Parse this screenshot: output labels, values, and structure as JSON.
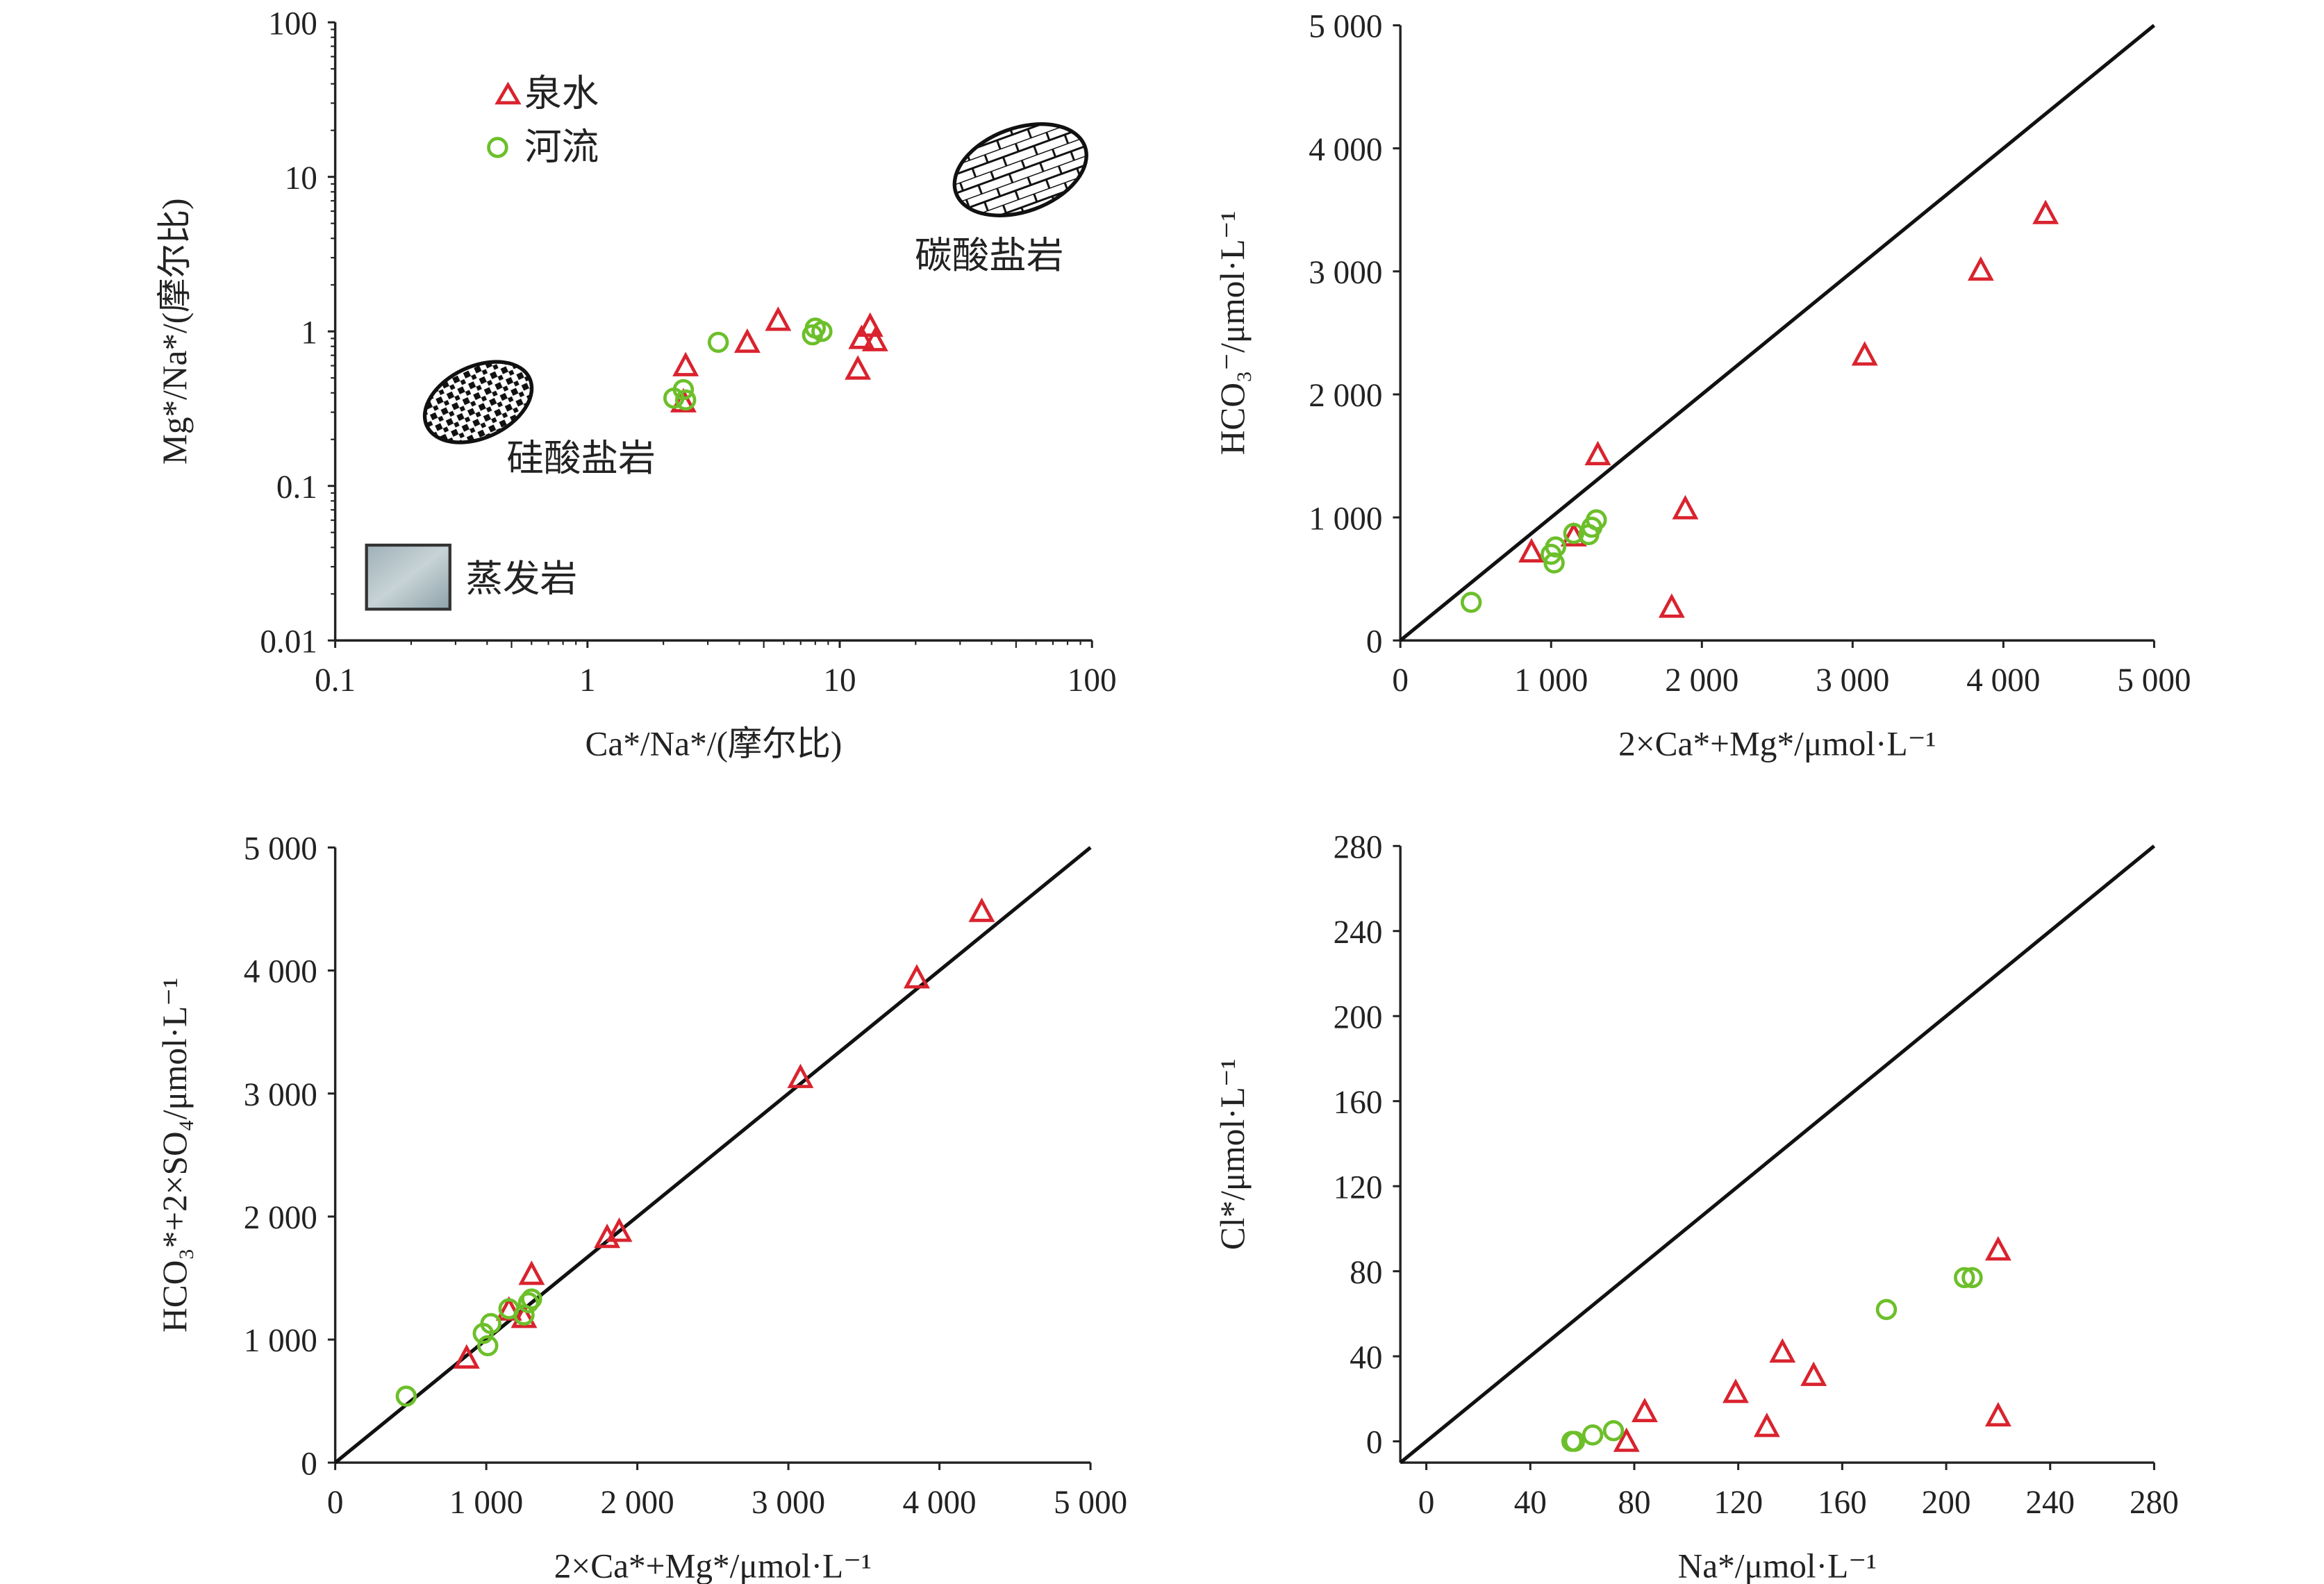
{
  "colors": {
    "spring": "#d9232e",
    "river": "#6cbf2a",
    "axis": "#222222",
    "line": "#111111"
  },
  "legend": {
    "items": [
      {
        "label": "泉水",
        "marker": "triangle"
      },
      {
        "label": "河流",
        "marker": "circle"
      }
    ],
    "placement": "top-left"
  },
  "chart_data": [
    {
      "type": "scatter",
      "xlabel": "Ca*/Na*/(摩尔比)",
      "ylabel": "Mg*/Na*/(摩尔比)",
      "xscale": "log",
      "yscale": "log",
      "xlim": [
        0.1,
        100
      ],
      "ylim": [
        0.01,
        100
      ],
      "xticks": [
        "0.1",
        "1",
        "10",
        "100"
      ],
      "yticks": [
        "0.01",
        "0.1",
        "1",
        "10",
        "100"
      ],
      "annotations": [
        {
          "text": "碳酸盐岩",
          "icon": "carbonate-rock-icon"
        },
        {
          "text": "硅酸盐岩",
          "icon": "silicate-rock-icon"
        },
        {
          "text": "蒸发岩",
          "icon": "evaporite-icon"
        }
      ],
      "series": [
        {
          "name": "泉水",
          "marker": "triangle",
          "points": [
            [
              2.4,
              0.35
            ],
            [
              2.45,
              0.6
            ],
            [
              4.3,
              0.85
            ],
            [
              5.7,
              1.18
            ],
            [
              11.8,
              0.57
            ],
            [
              12.2,
              0.9
            ],
            [
              13.2,
              1.08
            ],
            [
              13.8,
              0.87
            ]
          ]
        },
        {
          "name": "河流",
          "marker": "circle",
          "points": [
            [
              2.2,
              0.37
            ],
            [
              2.4,
              0.42
            ],
            [
              2.45,
              0.36
            ],
            [
              3.3,
              0.85
            ],
            [
              7.8,
              0.95
            ],
            [
              8.0,
              1.05
            ],
            [
              8.5,
              1.0
            ]
          ]
        }
      ]
    },
    {
      "type": "scatter",
      "xlabel": "2×Ca*+Mg*/μmol·L⁻¹",
      "ylabel": "HCO₃⁻/μmol·L⁻¹",
      "xlim": [
        0,
        5000
      ],
      "ylim": [
        0,
        5000
      ],
      "xticks": [
        "0",
        "1 000",
        "2 000",
        "3 000",
        "4 000",
        "5 000"
      ],
      "yticks": [
        "0",
        "1 000",
        "2 000",
        "3 000",
        "4 000",
        "5 000"
      ],
      "reference_line": "1:1",
      "series": [
        {
          "name": "泉水",
          "marker": "triangle",
          "points": [
            [
              870,
              720
            ],
            [
              1150,
              850
            ],
            [
              1310,
              1510
            ],
            [
              1890,
              1070
            ],
            [
              1800,
              270
            ],
            [
              3080,
              2320
            ],
            [
              3850,
              3010
            ],
            [
              4280,
              3470
            ]
          ]
        },
        {
          "name": "河流",
          "marker": "circle",
          "points": [
            [
              470,
              310
            ],
            [
              1000,
              700
            ],
            [
              1030,
              760
            ],
            [
              1020,
              630
            ],
            [
              1150,
              870
            ],
            [
              1250,
              860
            ],
            [
              1270,
              920
            ],
            [
              1300,
              980
            ]
          ]
        }
      ]
    },
    {
      "type": "scatter",
      "xlabel": "2×Ca*+Mg*/μmol·L⁻¹",
      "ylabel": "HCO₃*+2×SO₄/μmol·L⁻¹",
      "xlim": [
        0,
        5000
      ],
      "ylim": [
        0,
        5000
      ],
      "xticks": [
        "0",
        "1 000",
        "2 000",
        "3 000",
        "4 000",
        "5 000"
      ],
      "yticks": [
        "0",
        "1 000",
        "2 000",
        "3 000",
        "4 000",
        "5 000"
      ],
      "reference_line": "1:1",
      "series": [
        {
          "name": "泉水",
          "marker": "triangle",
          "points": [
            [
              870,
              850
            ],
            [
              1150,
              1240
            ],
            [
              1250,
              1180
            ],
            [
              1300,
              1530
            ],
            [
              1800,
              1830
            ],
            [
              1880,
              1880
            ],
            [
              3080,
              3130
            ],
            [
              3850,
              3940
            ],
            [
              4280,
              4480
            ]
          ]
        },
        {
          "name": "河流",
          "marker": "circle",
          "points": [
            [
              470,
              540
            ],
            [
              980,
              1050
            ],
            [
              1010,
              950
            ],
            [
              1030,
              1130
            ],
            [
              1150,
              1250
            ],
            [
              1250,
              1200
            ],
            [
              1280,
              1300
            ],
            [
              1300,
              1330
            ]
          ]
        }
      ]
    },
    {
      "type": "scatter",
      "xlabel": "Na*/μmol·L⁻¹",
      "ylabel": "Cl*/μmol·L⁻¹",
      "xlim": [
        -10,
        280
      ],
      "ylim": [
        -10,
        280
      ],
      "xticks": [
        "0",
        "40",
        "80",
        "120",
        "160",
        "200",
        "240",
        "280"
      ],
      "yticks": [
        "0",
        "40",
        "80",
        "120",
        "160",
        "200",
        "240",
        "280"
      ],
      "reference_line": "1:1",
      "series": [
        {
          "name": "泉水",
          "marker": "triangle",
          "points": [
            [
              77,
              0
            ],
            [
              84,
              14
            ],
            [
              119,
              23
            ],
            [
              131,
              7
            ],
            [
              137,
              42
            ],
            [
              149,
              31
            ],
            [
              220,
              90
            ],
            [
              220,
              12
            ]
          ]
        },
        {
          "name": "河流",
          "marker": "circle",
          "points": [
            [
              56,
              0
            ],
            [
              57,
              0
            ],
            [
              64,
              3
            ],
            [
              72,
              5
            ],
            [
              177,
              62
            ],
            [
              207,
              77
            ],
            [
              210,
              77
            ]
          ]
        }
      ]
    }
  ]
}
